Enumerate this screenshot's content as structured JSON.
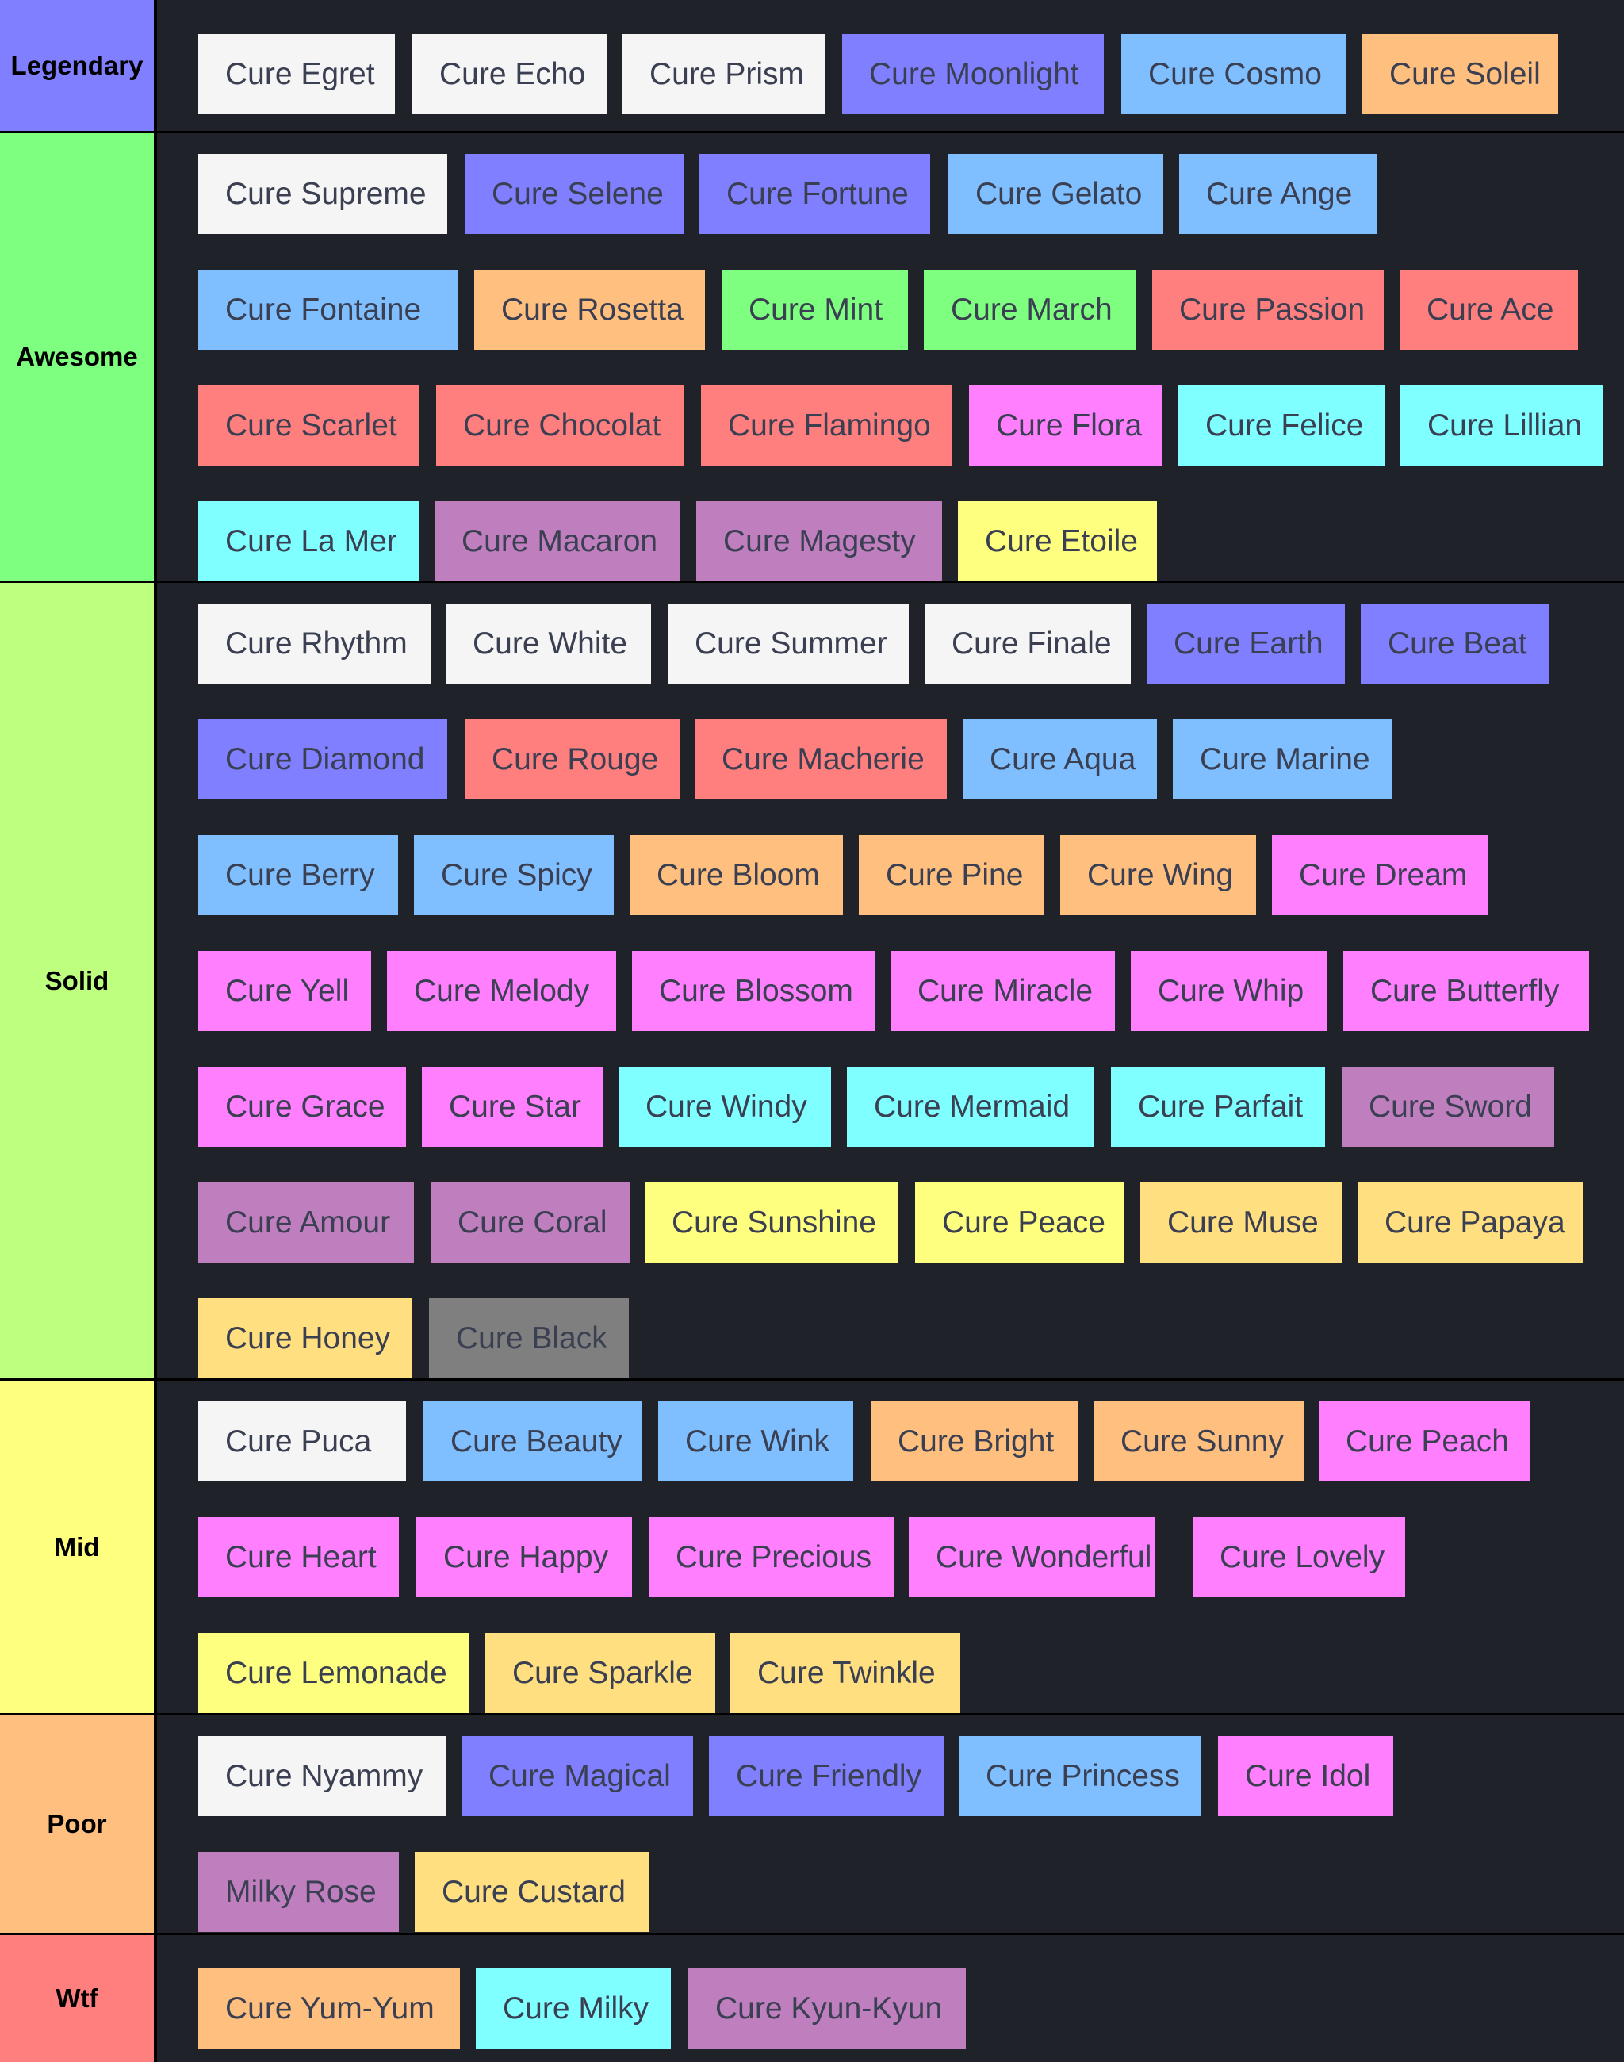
{
  "colors": {
    "background": "#1f2229",
    "white": "#f5f5f5",
    "purple": "#7f7fff",
    "blue": "#7fbfff",
    "orange": "#ffbf7f",
    "green": "#7fff7f",
    "red": "#ff7f7f",
    "magenta": "#ff7fff",
    "cyan": "#7fffff",
    "mauve": "#bf7fbf",
    "yellow": "#ffff7f",
    "gold": "#ffdf7f",
    "gray": "#7f7f7f"
  },
  "tiers": [
    {
      "label": "Legendary",
      "color": "#7f7fff",
      "items": [
        {
          "name": "Cure Egret",
          "color": "white"
        },
        {
          "name": "Cure Echo",
          "color": "white"
        },
        {
          "name": "Cure Prism",
          "color": "white"
        },
        {
          "name": "Cure Moonlight",
          "color": "purple"
        },
        {
          "name": "Cure Cosmo",
          "color": "blue"
        },
        {
          "name": "Cure Soleil",
          "color": "orange"
        }
      ]
    },
    {
      "label": "Awesome",
      "color": "#7fff7f",
      "items": [
        {
          "name": "Cure Supreme",
          "color": "white"
        },
        {
          "name": "Cure Selene",
          "color": "purple"
        },
        {
          "name": "Cure Fortune",
          "color": "purple"
        },
        {
          "name": "Cure Gelato",
          "color": "blue"
        },
        {
          "name": "Cure Ange",
          "color": "blue"
        },
        {
          "name": "Cure Fontaine",
          "color": "blue"
        },
        {
          "name": "Cure Rosetta",
          "color": "orange"
        },
        {
          "name": "Cure Mint",
          "color": "green"
        },
        {
          "name": "Cure March",
          "color": "green"
        },
        {
          "name": "Cure Passion",
          "color": "red"
        },
        {
          "name": "Cure Ace",
          "color": "red"
        },
        {
          "name": "Cure Scarlet",
          "color": "red"
        },
        {
          "name": "Cure Chocolat",
          "color": "red"
        },
        {
          "name": "Cure Flamingo",
          "color": "red"
        },
        {
          "name": "Cure Flora",
          "color": "magenta"
        },
        {
          "name": "Cure Felice",
          "color": "cyan"
        },
        {
          "name": "Cure Lillian",
          "color": "cyan"
        },
        {
          "name": "Cure La Mer",
          "color": "cyan"
        },
        {
          "name": "Cure Macaron",
          "color": "mauve"
        },
        {
          "name": "Cure Magesty",
          "color": "mauve"
        },
        {
          "name": "Cure Etoile",
          "color": "yellow"
        }
      ]
    },
    {
      "label": "Solid",
      "color": "#bfff7f",
      "items": [
        {
          "name": "Cure Rhythm",
          "color": "white"
        },
        {
          "name": "Cure White",
          "color": "white"
        },
        {
          "name": "Cure Summer",
          "color": "white"
        },
        {
          "name": "Cure Finale",
          "color": "white"
        },
        {
          "name": "Cure Earth",
          "color": "purple"
        },
        {
          "name": "Cure Beat",
          "color": "purple"
        },
        {
          "name": "Cure Diamond",
          "color": "purple"
        },
        {
          "name": "Cure Rouge",
          "color": "red"
        },
        {
          "name": "Cure Macherie",
          "color": "red"
        },
        {
          "name": "Cure Aqua",
          "color": "blue"
        },
        {
          "name": "Cure Marine",
          "color": "blue"
        },
        {
          "name": "Cure Berry",
          "color": "blue"
        },
        {
          "name": "Cure Spicy",
          "color": "blue"
        },
        {
          "name": "Cure Bloom",
          "color": "orange"
        },
        {
          "name": "Cure Pine",
          "color": "orange"
        },
        {
          "name": "Cure Wing",
          "color": "orange"
        },
        {
          "name": "Cure Dream",
          "color": "magenta"
        },
        {
          "name": "Cure Yell",
          "color": "magenta"
        },
        {
          "name": "Cure Melody",
          "color": "magenta"
        },
        {
          "name": "Cure Blossom",
          "color": "magenta"
        },
        {
          "name": "Cure Miracle",
          "color": "magenta"
        },
        {
          "name": "Cure Whip",
          "color": "magenta"
        },
        {
          "name": "Cure Butterfly",
          "color": "magenta"
        },
        {
          "name": "Cure Grace",
          "color": "magenta"
        },
        {
          "name": "Cure Star",
          "color": "magenta"
        },
        {
          "name": "Cure Windy",
          "color": "cyan"
        },
        {
          "name": "Cure Mermaid",
          "color": "cyan"
        },
        {
          "name": "Cure Parfait",
          "color": "cyan"
        },
        {
          "name": "Cure Sword",
          "color": "mauve"
        },
        {
          "name": "Cure Amour",
          "color": "mauve"
        },
        {
          "name": "Cure Coral",
          "color": "mauve"
        },
        {
          "name": "Cure Sunshine",
          "color": "yellow"
        },
        {
          "name": "Cure Peace",
          "color": "yellow"
        },
        {
          "name": "Cure Muse",
          "color": "gold"
        },
        {
          "name": "Cure Papaya",
          "color": "gold"
        },
        {
          "name": "Cure Honey",
          "color": "gold"
        },
        {
          "name": "Cure Black",
          "color": "gray"
        }
      ]
    },
    {
      "label": "Mid",
      "color": "#ffff7f",
      "items": [
        {
          "name": "Cure Puca",
          "color": "white"
        },
        {
          "name": "Cure Beauty",
          "color": "blue"
        },
        {
          "name": "Cure Wink",
          "color": "blue"
        },
        {
          "name": "Cure Bright",
          "color": "orange"
        },
        {
          "name": "Cure Sunny",
          "color": "orange"
        },
        {
          "name": "Cure Peach",
          "color": "magenta"
        },
        {
          "name": "Cure Heart",
          "color": "magenta"
        },
        {
          "name": "Cure Happy",
          "color": "magenta"
        },
        {
          "name": "Cure Precious",
          "color": "magenta"
        },
        {
          "name": "Cure Wonderful",
          "color": "magenta"
        },
        {
          "name": "Cure Lovely",
          "color": "magenta"
        },
        {
          "name": "Cure Lemonade",
          "color": "yellow"
        },
        {
          "name": "Cure Sparkle",
          "color": "gold"
        },
        {
          "name": "Cure Twinkle",
          "color": "gold"
        }
      ]
    },
    {
      "label": "Poor",
      "color": "#ffbf7f",
      "items": [
        {
          "name": "Cure Nyammy",
          "color": "white"
        },
        {
          "name": "Cure Magical",
          "color": "purple"
        },
        {
          "name": "Cure Friendly",
          "color": "purple"
        },
        {
          "name": "Cure Princess",
          "color": "blue"
        },
        {
          "name": "Cure Idol",
          "color": "magenta"
        },
        {
          "name": "Milky Rose",
          "color": "mauve"
        },
        {
          "name": "Cure Custard",
          "color": "gold"
        }
      ]
    },
    {
      "label": "Wtf",
      "color": "#ff7f7f",
      "items": [
        {
          "name": "Cure Yum-Yum",
          "color": "orange"
        },
        {
          "name": "Cure Milky",
          "color": "cyan"
        },
        {
          "name": "Cure Kyun-Kyun",
          "color": "mauve"
        }
      ]
    }
  ]
}
